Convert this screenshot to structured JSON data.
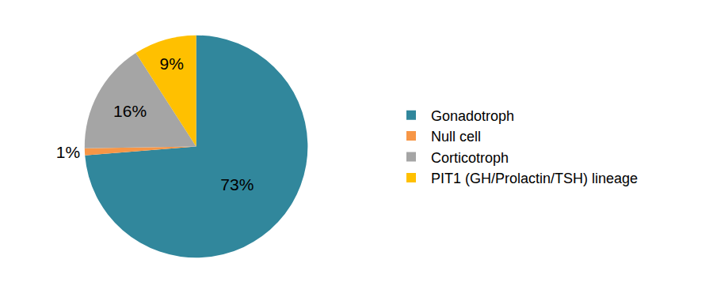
{
  "chart_data": {
    "type": "pie",
    "categories": [
      "Gonadotroph",
      "Null cell",
      "Corticotroph",
      "PIT1 (GH/Prolactin/TSH) lineage"
    ],
    "values": [
      73,
      1,
      16,
      9
    ],
    "value_labels": [
      "73%",
      "1%",
      "16%",
      "9%"
    ],
    "colors": [
      "#31879c",
      "#f79646",
      "#a5a5a5",
      "#ffc000"
    ],
    "data_labels": true,
    "legend": "right"
  }
}
